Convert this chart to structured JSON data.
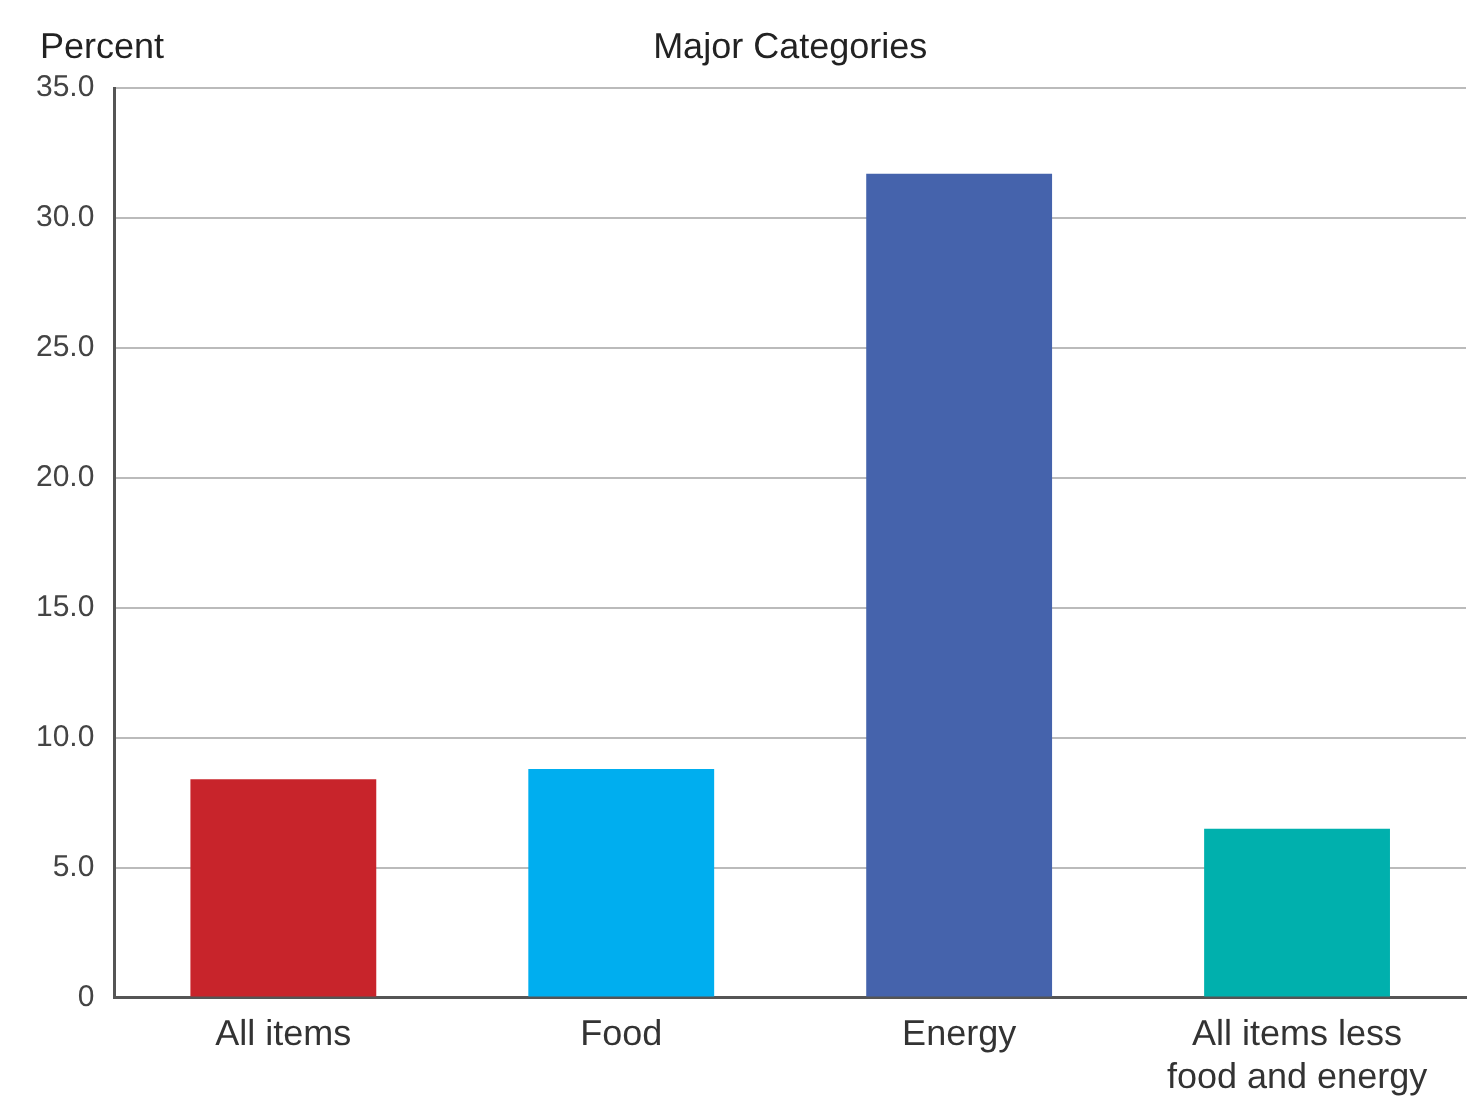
{
  "chart_data": {
    "type": "bar",
    "title": "Major Categories",
    "ylabel": "Percent",
    "categories": [
      "All items",
      "Food",
      "Energy",
      "All items less food and energy"
    ],
    "values": [
      8.4,
      8.8,
      31.7,
      6.5
    ],
    "colors": [
      "#c8242b",
      "#00aeef",
      "#4563ac",
      "#00b0ad"
    ],
    "ylim": [
      0,
      35
    ],
    "yticks": [
      {
        "value": 0,
        "label": "0"
      },
      {
        "value": 5,
        "label": "5.0"
      },
      {
        "value": 10,
        "label": "10.0"
      },
      {
        "value": 15,
        "label": "15.0"
      },
      {
        "value": 20,
        "label": "20.0"
      },
      {
        "value": 25,
        "label": "25.0"
      },
      {
        "value": 30,
        "label": "30.0"
      },
      {
        "value": 35,
        "label": "35.0"
      }
    ],
    "grid": "y"
  }
}
